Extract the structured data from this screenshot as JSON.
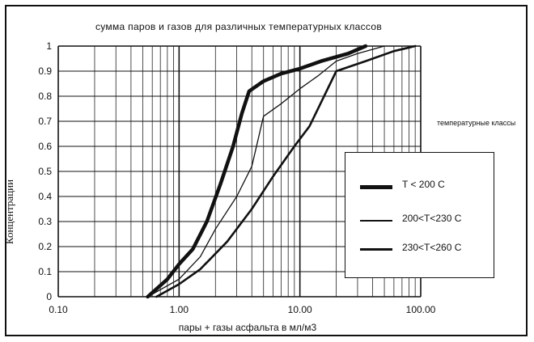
{
  "chart_data": {
    "type": "line",
    "title": "сумма паров и газов для различных температурных классов",
    "xlabel": "пары + газы асфальта в мл/м3",
    "ylabel": "Концентрации",
    "x_scale": "log",
    "xlim": [
      0.1,
      100
    ],
    "ylim": [
      0,
      1
    ],
    "x_ticks": [
      "0.10",
      "1.00",
      "10.00",
      "100.00"
    ],
    "y_ticks": [
      "0",
      "0.1",
      "0.2",
      "0.3",
      "0.4",
      "0.5",
      "0.6",
      "0.7",
      "0.8",
      "0.9",
      "1"
    ],
    "grid": true,
    "legend_title": "температурные классы",
    "legend_position": "right",
    "series": [
      {
        "name": "T <  200 C",
        "line_weight": "thick",
        "points": [
          [
            0.55,
            0
          ],
          [
            0.8,
            0.07
          ],
          [
            1.0,
            0.13
          ],
          [
            1.3,
            0.19
          ],
          [
            1.7,
            0.3
          ],
          [
            2.2,
            0.45
          ],
          [
            2.8,
            0.6
          ],
          [
            3.3,
            0.73
          ],
          [
            3.8,
            0.82
          ],
          [
            5.0,
            0.86
          ],
          [
            7.0,
            0.89
          ],
          [
            10.0,
            0.91
          ],
          [
            15.0,
            0.94
          ],
          [
            25.0,
            0.97
          ],
          [
            35.0,
            1.0
          ]
        ]
      },
      {
        "name": "200<T<230 C",
        "line_weight": "thin",
        "points": [
          [
            0.55,
            0
          ],
          [
            1.0,
            0.07
          ],
          [
            1.5,
            0.16
          ],
          [
            2.0,
            0.27
          ],
          [
            3.0,
            0.4
          ],
          [
            4.0,
            0.52
          ],
          [
            5.0,
            0.72
          ],
          [
            7.0,
            0.77
          ],
          [
            10.0,
            0.83
          ],
          [
            14.0,
            0.88
          ],
          [
            20.0,
            0.94
          ],
          [
            30.0,
            0.97
          ],
          [
            50.0,
            1.0
          ]
        ]
      },
      {
        "name": "230<T<260 C",
        "line_weight": "medium",
        "points": [
          [
            0.65,
            0
          ],
          [
            1.0,
            0.05
          ],
          [
            1.5,
            0.11
          ],
          [
            2.5,
            0.22
          ],
          [
            4.0,
            0.35
          ],
          [
            6.0,
            0.48
          ],
          [
            9.0,
            0.6
          ],
          [
            12.0,
            0.68
          ],
          [
            20.0,
            0.9
          ],
          [
            35.0,
            0.94
          ],
          [
            60.0,
            0.98
          ],
          [
            90.0,
            1.0
          ]
        ]
      }
    ]
  }
}
